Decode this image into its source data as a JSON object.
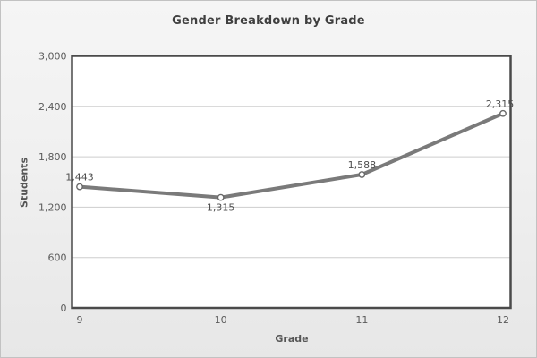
{
  "chart_data": {
    "type": "line",
    "title": "Gender Breakdown by Grade",
    "xlabel": "Grade",
    "ylabel": "Students",
    "categories": [
      "9",
      "10",
      "11",
      "12"
    ],
    "values": [
      1443,
      1315,
      1588,
      2315
    ],
    "point_labels": [
      "1,443",
      "1,315",
      "1,588",
      "2,315"
    ],
    "label_positions": [
      "above",
      "below",
      "above",
      "above"
    ],
    "ylim": [
      0,
      3000
    ],
    "yticks": [
      0,
      600,
      1200,
      1800,
      2400,
      3000
    ],
    "ytick_labels": [
      "0",
      "600",
      "1,200",
      "1,800",
      "2,400",
      "3,000"
    ],
    "grid": "horizontal",
    "legend": "none"
  },
  "colors": {
    "series_line": "#7a7a7a",
    "marker_fill": "#ffffff",
    "marker_stroke": "#696969",
    "plot_background": "#ffffff",
    "plot_border": "#4a4a4a",
    "gridline": "#cdcdcd",
    "tick_label_text": "#5a5a5a",
    "data_label_text": "#4f4f4f",
    "title_text": "#3f3f3f",
    "axis_title_text": "#555555",
    "page_background_top": "#f5f5f5",
    "page_background_bottom": "#e7e7e7",
    "frame_border": "#c2c2c2"
  }
}
